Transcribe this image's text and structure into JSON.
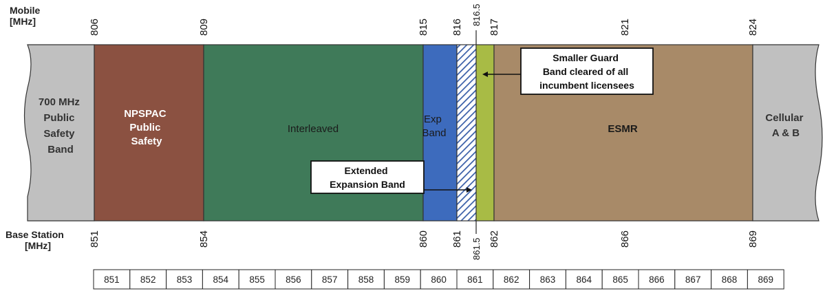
{
  "axes": {
    "mobile_label": [
      "Mobile",
      "[MHz]"
    ],
    "base_label": [
      "Base Station",
      "[MHz]"
    ]
  },
  "mobile_ticks": [
    "806",
    "809",
    "815",
    "816",
    "816.5",
    "817",
    "821",
    "824"
  ],
  "base_ticks": [
    "851",
    "854",
    "860",
    "861",
    "861.5",
    "862",
    "866",
    "869"
  ],
  "bands": [
    {
      "id": "700mhz",
      "lines": [
        "700 MHz",
        "Public",
        "Safety",
        "Band"
      ],
      "color": "#c0c0c0",
      "text_color": "#333333"
    },
    {
      "id": "npspac",
      "lines": [
        "NPSPAC",
        "Public",
        "Safety"
      ],
      "color": "#8b5141",
      "text_color": "#ffffff"
    },
    {
      "id": "interleaved",
      "lines": [
        "Interleaved"
      ],
      "color": "#3f7a59",
      "text_color": "#1a1a1a"
    },
    {
      "id": "exp",
      "lines": [
        "Exp",
        "Band"
      ],
      "color": "#3d6bbd",
      "text_color": "#1a1a1a"
    },
    {
      "id": "extended",
      "lines": [],
      "color": "#ffffff",
      "hatch": "#3a5fa8"
    },
    {
      "id": "guard",
      "lines": [],
      "color": "#a8bb45"
    },
    {
      "id": "esmr",
      "lines": [
        "ESMR"
      ],
      "color": "#a88a68",
      "text_color": "#1a1a1a"
    },
    {
      "id": "cellular",
      "lines": [
        "Cellular",
        "A & B"
      ],
      "color": "#c0c0c0",
      "text_color": "#333333"
    }
  ],
  "callouts": {
    "extended": [
      "Extended",
      "Expansion Band"
    ],
    "guard": [
      "Smaller Guard",
      "Band cleared of all",
      "incumbent licensees"
    ]
  },
  "scale": [
    "851",
    "852",
    "853",
    "854",
    "855",
    "856",
    "857",
    "858",
    "859",
    "860",
    "861",
    "862",
    "863",
    "864",
    "865",
    "866",
    "867",
    "868",
    "869"
  ]
}
